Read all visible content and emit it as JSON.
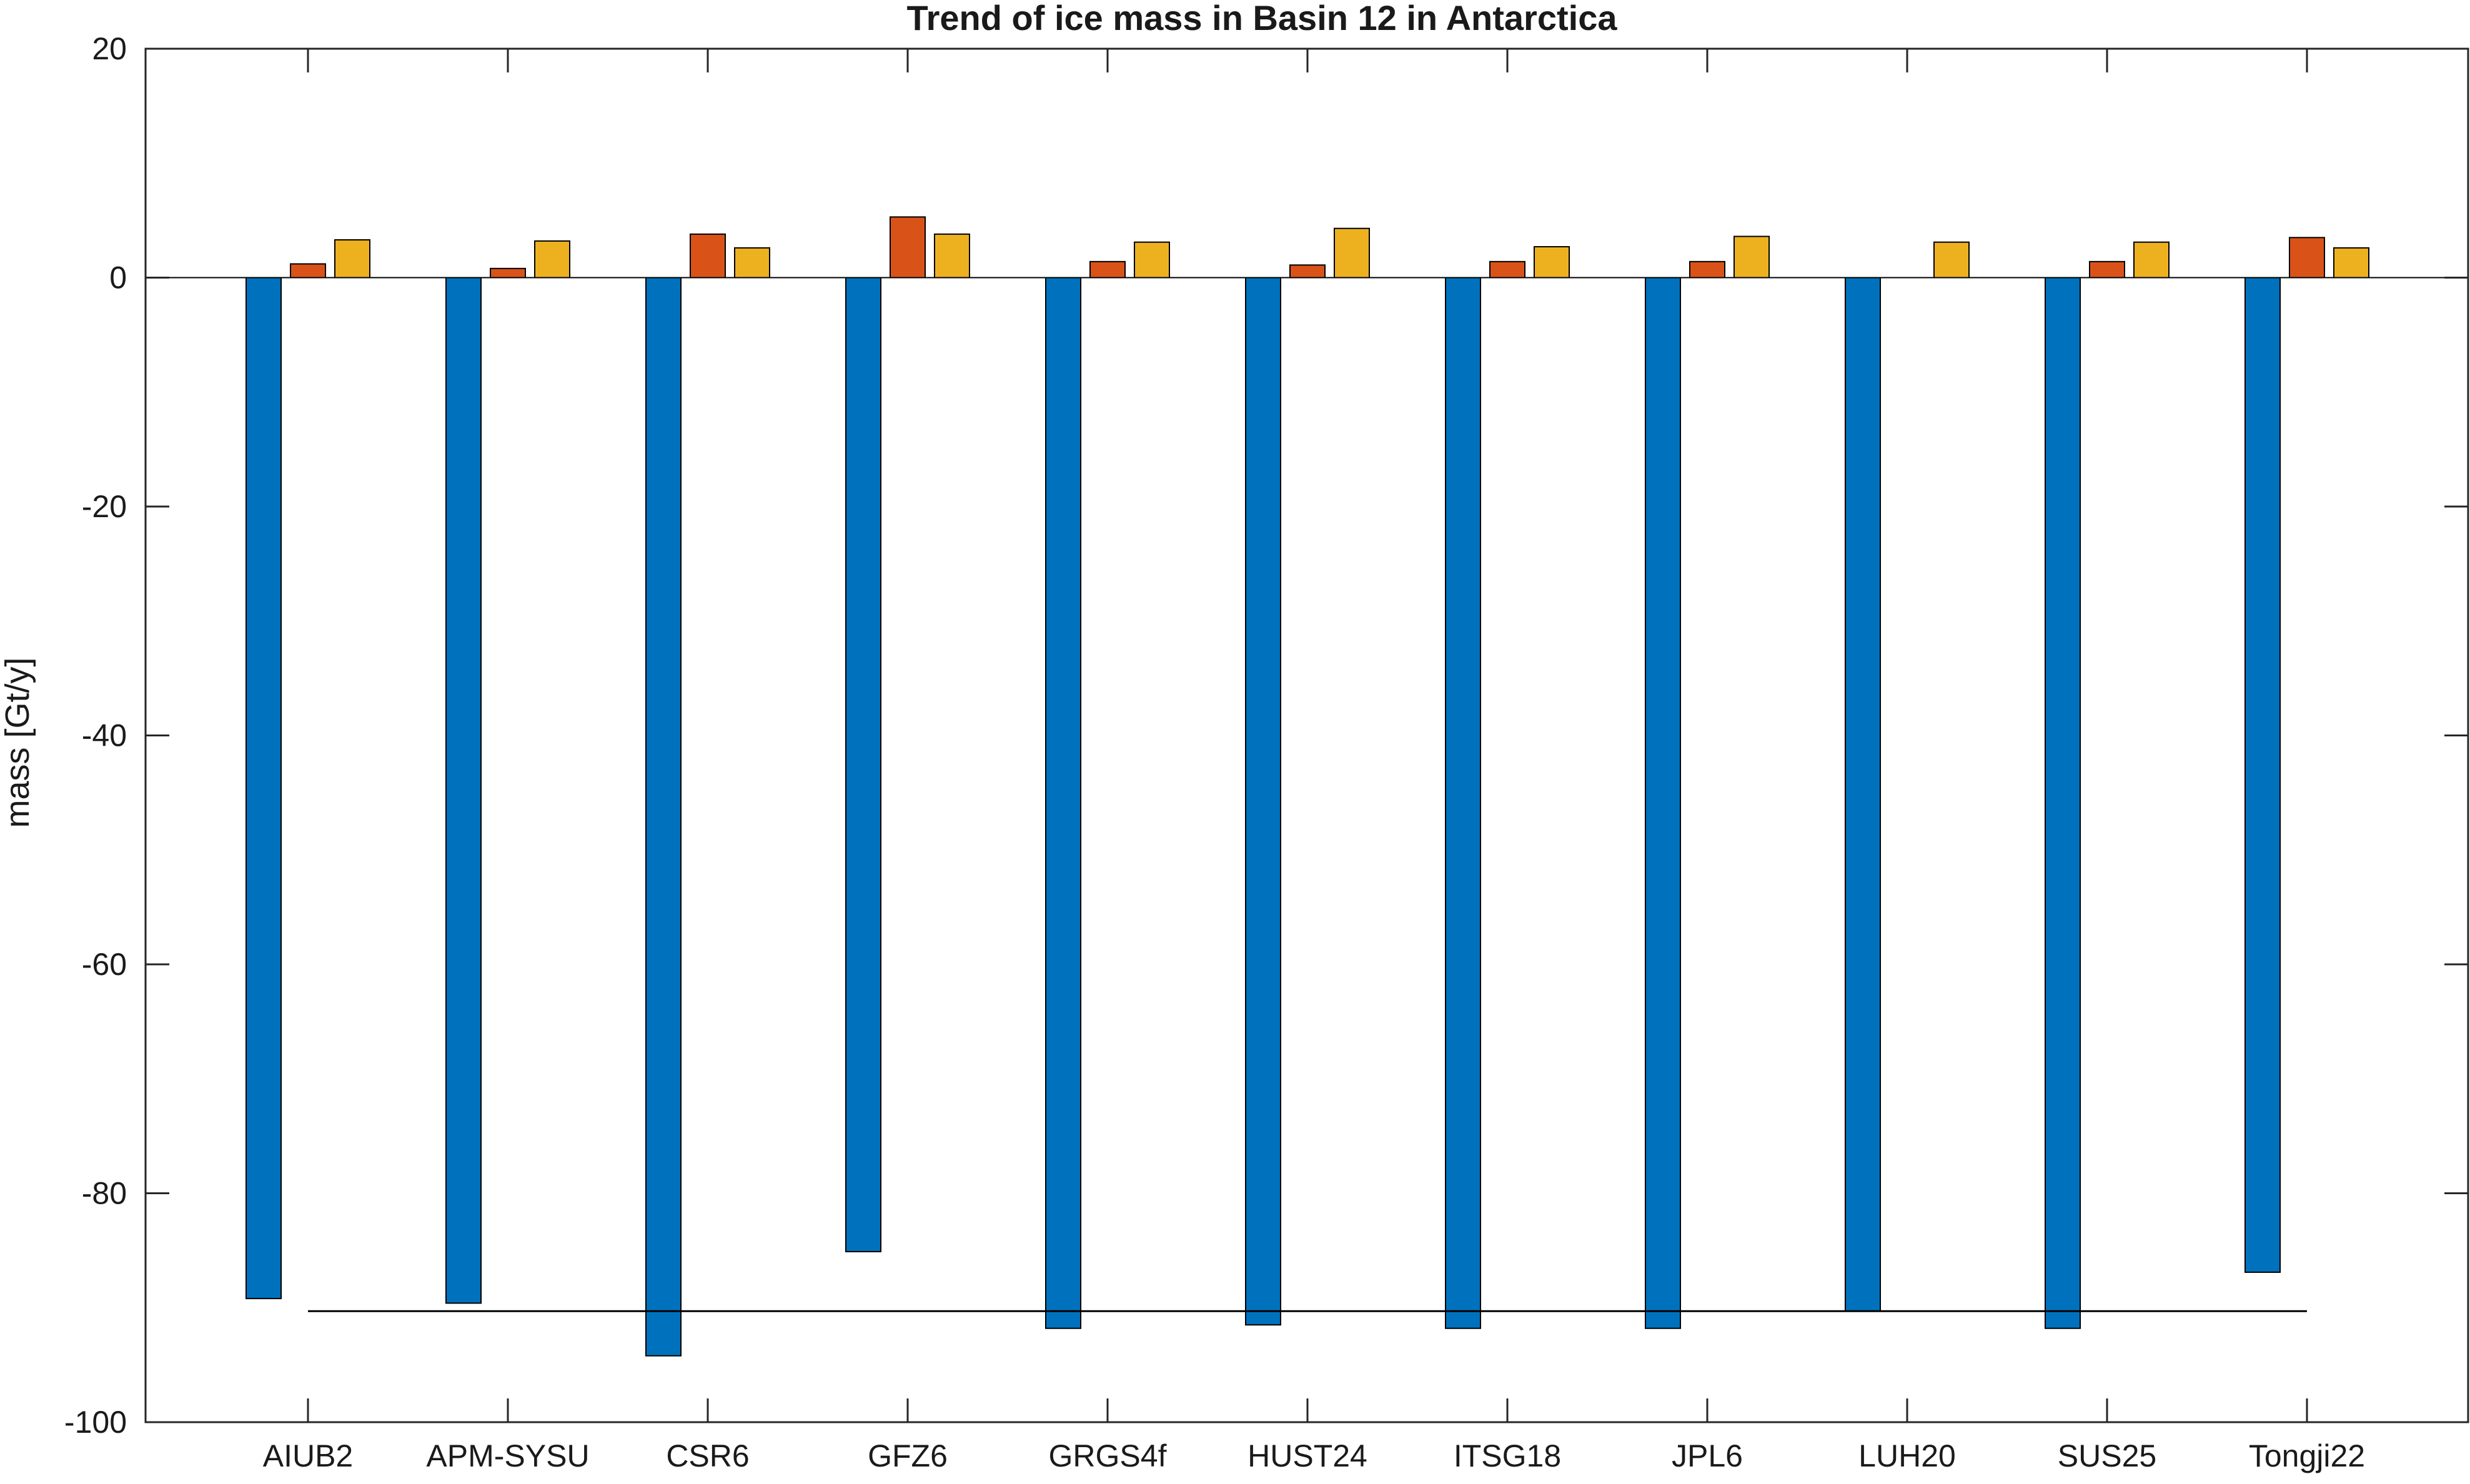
{
  "chart_data": {
    "type": "bar",
    "title": "Trend of ice mass in Basin 12 in Antarctica",
    "xlabel": "",
    "ylabel": "mass [Gt/y]",
    "ylim": [
      -100,
      20
    ],
    "yticks": [
      20,
      0,
      -20,
      -40,
      -60,
      -80,
      -100
    ],
    "ytick_labels": [
      "20",
      "0",
      "-20",
      "-40",
      "-60",
      "-80",
      "-100"
    ],
    "grid": false,
    "legend": "none",
    "categories": [
      "AIUB2",
      "APM-SYSU",
      "CSR6",
      "GFZ6",
      "GRGS4f",
      "HUST24",
      "ITSG18",
      "JPL6",
      "LUH20",
      "SUS25",
      "Tongji22"
    ],
    "series": [
      {
        "color": "#0072BD",
        "values": [
          -89.2,
          -89.6,
          -94.2,
          -85.1,
          -91.8,
          -91.5,
          -91.8,
          -91.8,
          -90.3,
          -91.8,
          -86.9
        ]
      },
      {
        "color": "#D95319",
        "values": [
          1.2,
          0.8,
          3.8,
          5.3,
          1.4,
          1.1,
          1.4,
          1.4,
          0.0,
          1.4,
          3.5
        ]
      },
      {
        "color": "#EDB120",
        "values": [
          3.3,
          3.2,
          2.6,
          3.8,
          3.1,
          4.3,
          2.7,
          3.6,
          3.1,
          3.1,
          2.6
        ]
      }
    ],
    "reference_line": {
      "y": -90.3,
      "from_category": "AIUB2",
      "to_category": "Tongji22"
    }
  }
}
